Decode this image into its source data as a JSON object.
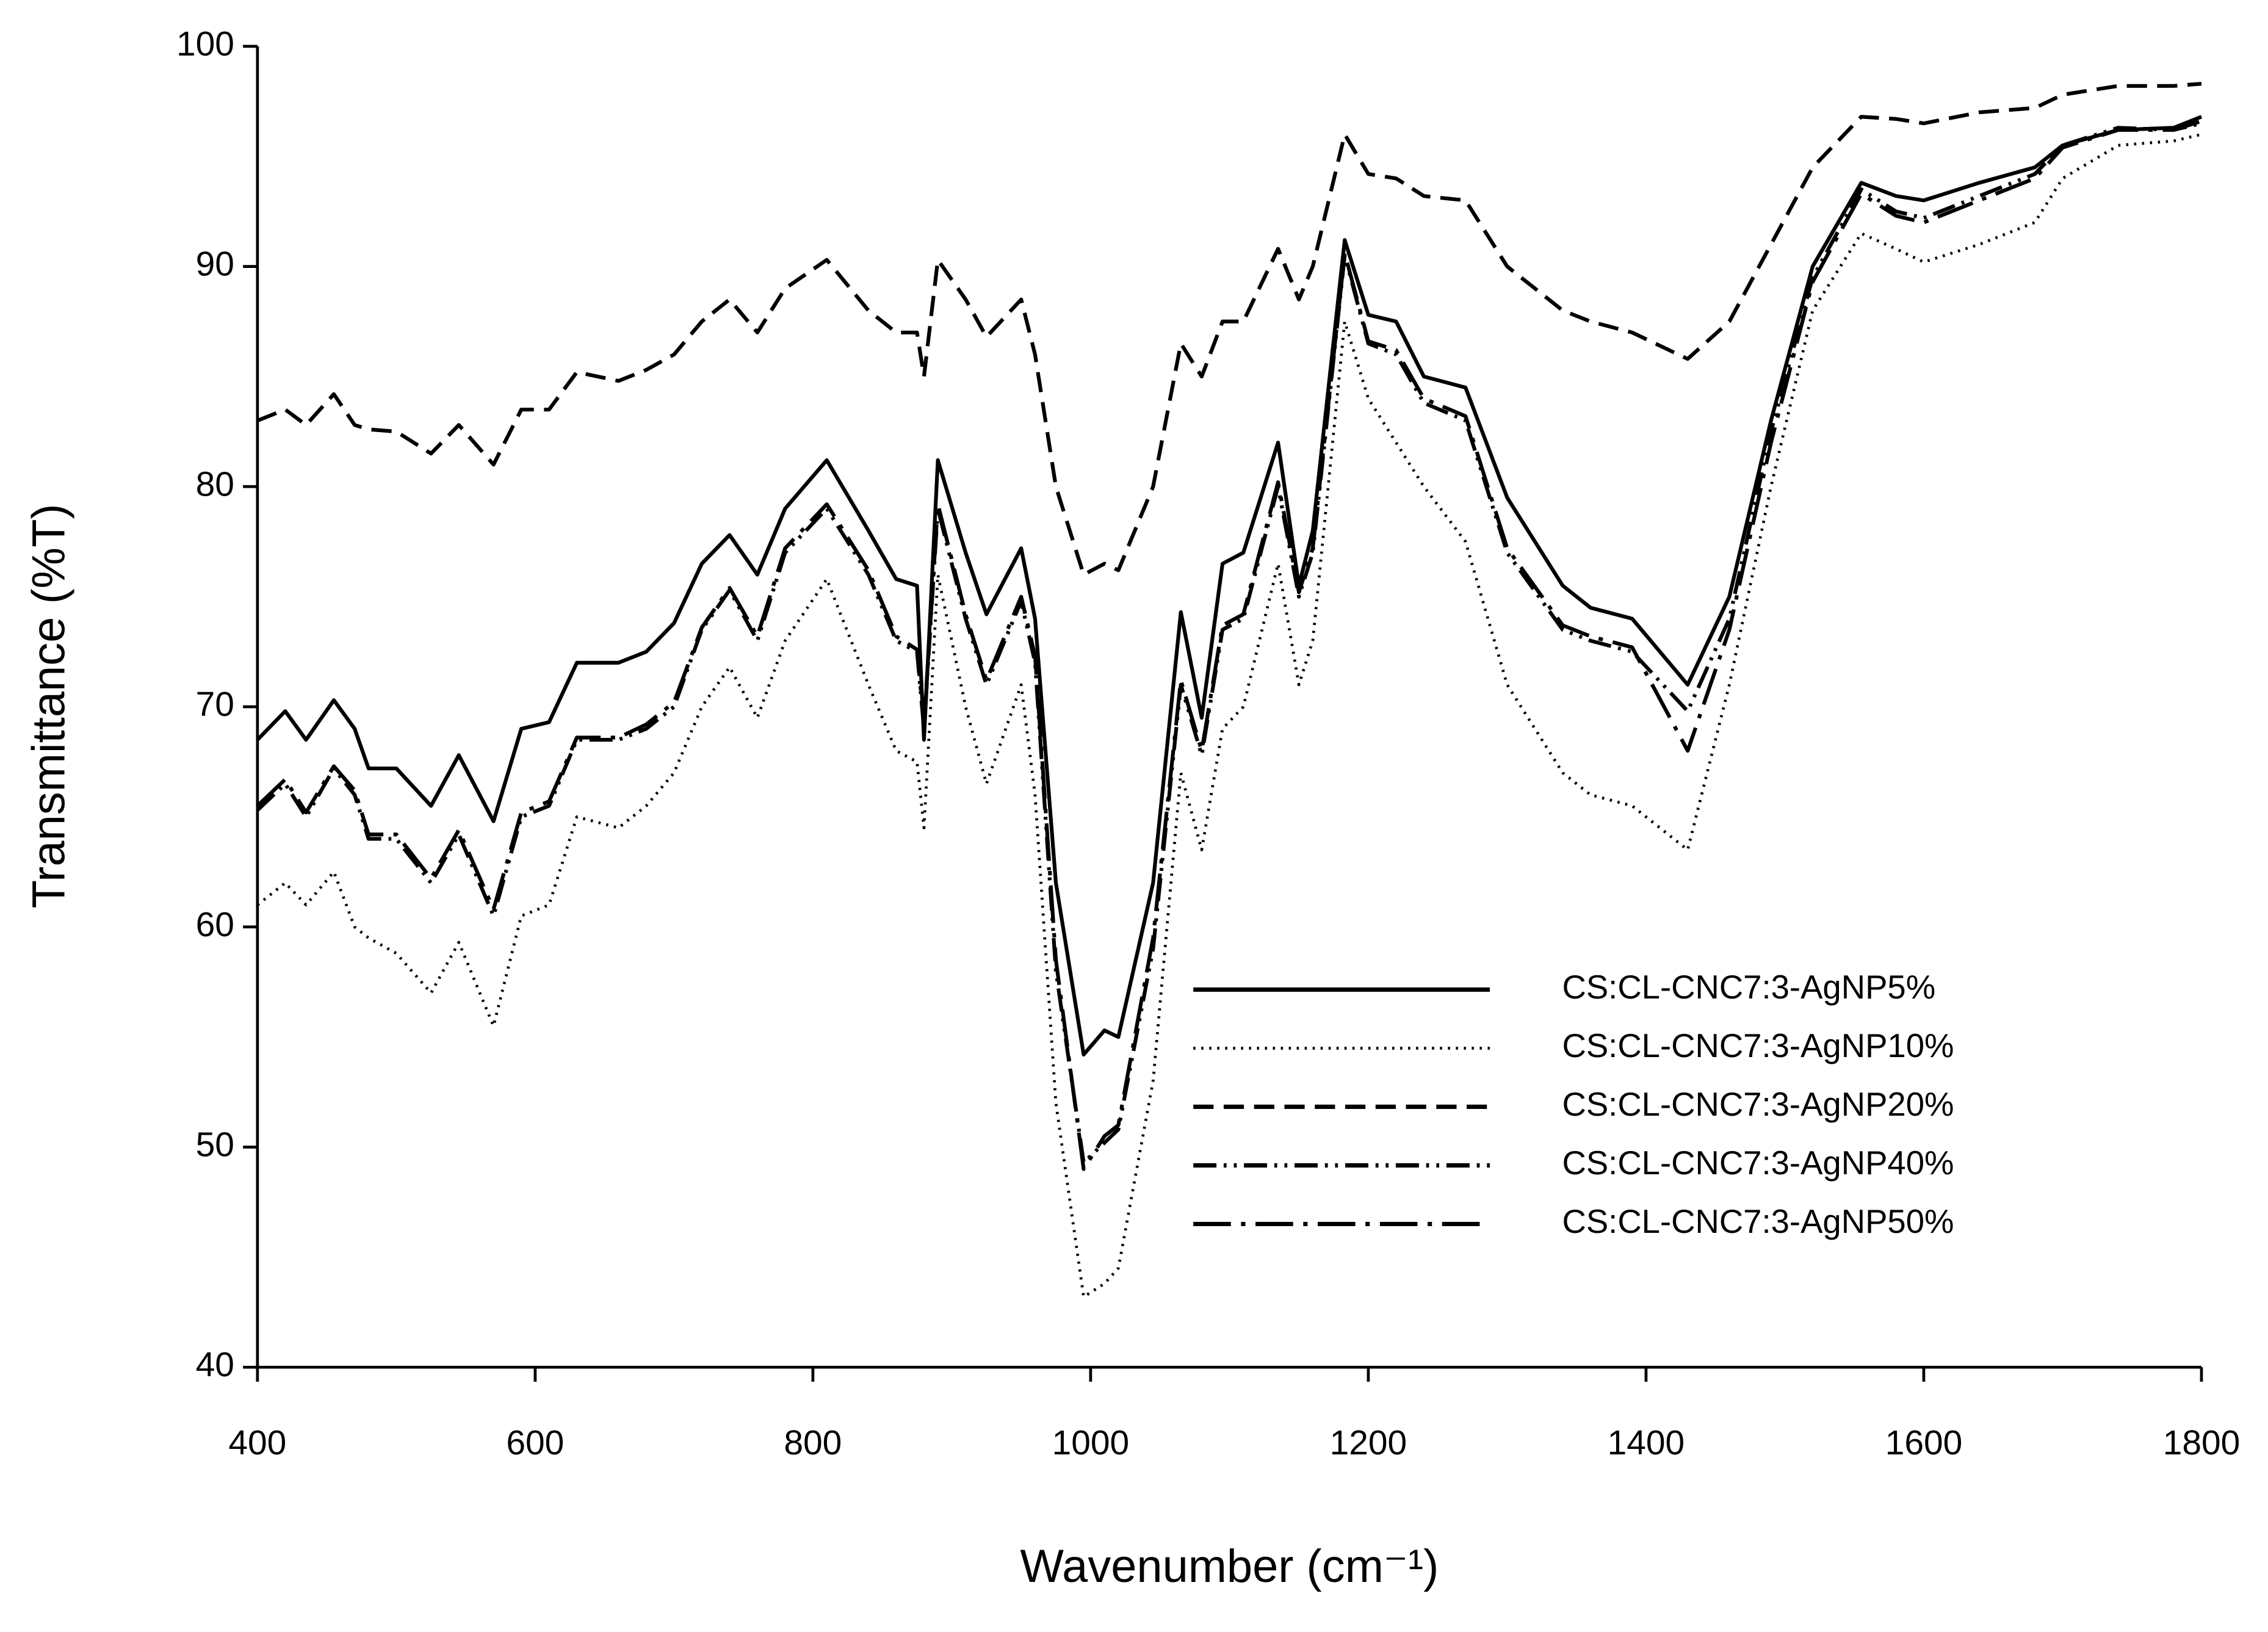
{
  "chart_data": {
    "type": "line",
    "xlabel": "Wavenumber (cm⁻¹)",
    "ylabel": "Transmittance (%T)",
    "x": [
      400,
      420,
      435,
      455,
      470,
      480,
      500,
      525,
      545,
      570,
      590,
      610,
      630,
      660,
      680,
      700,
      720,
      740,
      760,
      780,
      810,
      840,
      860,
      875,
      880,
      890,
      910,
      925,
      950,
      960,
      975,
      995,
      1010,
      1020,
      1045,
      1065,
      1080,
      1095,
      1110,
      1135,
      1150,
      1160,
      1183,
      1200,
      1220,
      1240,
      1270,
      1300,
      1340,
      1360,
      1390,
      1430,
      1460,
      1490,
      1520,
      1555,
      1580,
      1600,
      1640,
      1680,
      1700,
      1740,
      1780,
      1800
    ],
    "series": [
      {
        "name": "CS:CL-CNC7:3-AgNP5%",
        "color": "#000000",
        "dash": "solid",
        "values": [
          68.5,
          69.8,
          68.5,
          70.3,
          69,
          67.2,
          67.2,
          65.5,
          67.8,
          64.8,
          69,
          69.3,
          72,
          72,
          72.5,
          73.8,
          76.5,
          77.8,
          76,
          79,
          81.2,
          78,
          75.8,
          75.5,
          68.5,
          81.2,
          77,
          74.2,
          77.2,
          74,
          62,
          54.2,
          55.3,
          55,
          62,
          74.3,
          69.5,
          76.5,
          77,
          82,
          75.5,
          78,
          91.2,
          87.8,
          87.5,
          85,
          84.5,
          79.5,
          75.5,
          74.5,
          74,
          71,
          75,
          83,
          90,
          93.8,
          93.2,
          93,
          93.8,
          94.5,
          95.5,
          96.2,
          96.3,
          96.8
        ]
      },
      {
        "name": "CS:CL-CNC7:3-AgNP10%",
        "color": "#000000",
        "dash": "dotted",
        "values": [
          61,
          62,
          61,
          62.5,
          60,
          59.5,
          58.8,
          57,
          59.3,
          55.5,
          60.5,
          61,
          65,
          64.5,
          65.5,
          67,
          70,
          71.8,
          69.5,
          73,
          75.8,
          71,
          68,
          67.5,
          64.5,
          76,
          70,
          66.5,
          71,
          66,
          52,
          43.2,
          43.8,
          44.5,
          53,
          67,
          63.5,
          69,
          70,
          76.5,
          71,
          73,
          87.5,
          84,
          82,
          80,
          77.5,
          71,
          67,
          66,
          65.5,
          63.5,
          71,
          80,
          88,
          91.5,
          90.8,
          90.2,
          91,
          92,
          94,
          95.5,
          95.7,
          96
        ]
      },
      {
        "name": "CS:CL-CNC7:3-AgNP20%",
        "color": "#000000",
        "dash": "dashed",
        "values": [
          83,
          83.5,
          82.8,
          84.2,
          82.8,
          82.6,
          82.5,
          81.5,
          82.8,
          81,
          83.5,
          83.5,
          85.2,
          84.8,
          85.3,
          86,
          87.5,
          88.5,
          87,
          89,
          90.3,
          88,
          87,
          87,
          85,
          90.3,
          88.5,
          86.8,
          88.5,
          86,
          80,
          76,
          76.5,
          76.2,
          80,
          86.5,
          85,
          87.5,
          87.5,
          90.8,
          88.5,
          90,
          96,
          94.2,
          94,
          93.2,
          93,
          90,
          88,
          87.5,
          87,
          85.8,
          87.5,
          91,
          94.5,
          96.8,
          96.7,
          96.5,
          97,
          97.2,
          97.8,
          98.2,
          98.2,
          98.3
        ]
      },
      {
        "name": "CS:CL-CNC7:3-AgNP40%",
        "color": "#000000",
        "dash": "dash-dot-dot",
        "values": [
          65.3,
          66.5,
          65,
          67.2,
          66,
          64,
          64,
          62,
          64.2,
          60.5,
          65,
          65.5,
          68.5,
          68.5,
          69,
          70,
          73.5,
          75.3,
          73,
          77,
          79,
          76,
          73,
          72.5,
          69,
          79,
          74,
          71,
          74.8,
          72,
          58,
          49.3,
          50.2,
          50.8,
          59,
          71,
          67.8,
          73.5,
          74,
          80,
          75,
          77,
          90.5,
          86.5,
          86,
          83.8,
          83,
          77,
          73.5,
          73,
          72.5,
          69.8,
          74,
          82.5,
          89.5,
          93.5,
          92.5,
          92.2,
          93.2,
          94.2,
          95.5,
          96.3,
          96.2,
          96.5
        ]
      },
      {
        "name": "CS:CL-CNC7:3-AgNP50%",
        "color": "#000000",
        "dash": "long-dash-dot",
        "values": [
          65.5,
          66.7,
          65.2,
          67.3,
          66.2,
          64.2,
          64.2,
          62.2,
          64.4,
          60.8,
          65.2,
          65.7,
          68.6,
          68.6,
          69.2,
          70.2,
          73.6,
          75.4,
          73.2,
          77.2,
          79.2,
          76.2,
          73.2,
          72.6,
          69.2,
          79.2,
          74.2,
          71.2,
          75,
          72.3,
          58.5,
          49,
          50.5,
          51,
          59.5,
          71.2,
          68,
          73.7,
          74.2,
          80.2,
          75.2,
          77.2,
          90.6,
          86.6,
          86.2,
          84,
          83.2,
          77.2,
          73.7,
          73.2,
          72.7,
          68,
          73.5,
          82,
          89.3,
          93.3,
          92.3,
          92,
          93,
          94,
          95.4,
          96.2,
          96.2,
          96.6
        ]
      }
    ],
    "xlim": [
      400,
      1800
    ],
    "xticks": [
      400,
      600,
      800,
      1000,
      1200,
      1400,
      1600,
      1800
    ],
    "ylim": [
      40,
      100
    ],
    "yticks": [
      40,
      50,
      60,
      70,
      80,
      90,
      100
    ],
    "grid": false,
    "legend": "lower right"
  }
}
